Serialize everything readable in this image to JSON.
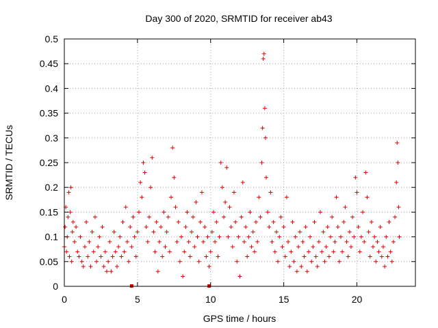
{
  "chart_data": {
    "type": "scatter",
    "title": "Day 300 of 2020, SRMTID for receiver ab43",
    "xlabel": "GPS time / hours",
    "ylabel": "SRMTID / TECUs",
    "xlim": [
      0,
      24
    ],
    "ylim": [
      0,
      0.5
    ],
    "xticks": [
      0,
      5,
      10,
      15,
      20
    ],
    "xtick_labels": [
      "0",
      "5",
      "10",
      "15",
      "20"
    ],
    "yticks": [
      0,
      0.05,
      0.1,
      0.15,
      0.2,
      0.25,
      0.3,
      0.35,
      0.4,
      0.45,
      0.5
    ],
    "ytick_labels": [
      "0",
      "0.05",
      "0.1",
      "0.15",
      "0.2",
      "0.25",
      "0.3",
      "0.35",
      "0.4",
      "0.45",
      "0.5"
    ],
    "grid": true,
    "marker_color": "#e00000",
    "axis_markers_x": [
      4.6,
      9.9
    ],
    "series": [
      {
        "name": "SRMTID",
        "points": [
          [
            0.0,
            0.08
          ],
          [
            0.05,
            0.12
          ],
          [
            0.1,
            0.16
          ],
          [
            0.15,
            0.07
          ],
          [
            0.2,
            0.1
          ],
          [
            0.25,
            0.14
          ],
          [
            0.3,
            0.19
          ],
          [
            0.35,
            0.06
          ],
          [
            0.4,
            0.15
          ],
          [
            0.45,
            0.2
          ],
          [
            0.5,
            0.05
          ],
          [
            0.55,
            0.11
          ],
          [
            0.6,
            0.13
          ],
          [
            0.7,
            0.09
          ],
          [
            0.8,
            0.12
          ],
          [
            0.9,
            0.07
          ],
          [
            1.0,
            0.06
          ],
          [
            1.1,
            0.1
          ],
          [
            1.2,
            0.05
          ],
          [
            1.3,
            0.04
          ],
          [
            1.4,
            0.08
          ],
          [
            1.5,
            0.13
          ],
          [
            1.6,
            0.06
          ],
          [
            1.7,
            0.09
          ],
          [
            1.8,
            0.04
          ],
          [
            1.9,
            0.11
          ],
          [
            2.0,
            0.07
          ],
          [
            2.1,
            0.14
          ],
          [
            2.2,
            0.05
          ],
          [
            2.3,
            0.08
          ],
          [
            2.4,
            0.1
          ],
          [
            2.5,
            0.06
          ],
          [
            2.6,
            0.12
          ],
          [
            2.7,
            0.04
          ],
          [
            2.8,
            0.07
          ],
          [
            2.9,
            0.03
          ],
          [
            3.0,
            0.05
          ],
          [
            3.1,
            0.09
          ],
          [
            3.2,
            0.03
          ],
          [
            3.3,
            0.06
          ],
          [
            3.4,
            0.11
          ],
          [
            3.5,
            0.07
          ],
          [
            3.6,
            0.04
          ],
          [
            3.7,
            0.08
          ],
          [
            3.8,
            0.1
          ],
          [
            3.9,
            0.06
          ],
          [
            4.0,
            0.13
          ],
          [
            4.1,
            0.07
          ],
          [
            4.2,
            0.16
          ],
          [
            4.3,
            0.09
          ],
          [
            4.4,
            0.05
          ],
          [
            4.5,
            0.12
          ],
          [
            4.6,
            0.08
          ],
          [
            4.7,
            0.14
          ],
          [
            4.8,
            0.1
          ],
          [
            4.9,
            0.06
          ],
          [
            5.0,
            0.11
          ],
          [
            5.1,
            0.15
          ],
          [
            5.2,
            0.21
          ],
          [
            5.3,
            0.18
          ],
          [
            5.4,
            0.25
          ],
          [
            5.5,
            0.23
          ],
          [
            5.6,
            0.12
          ],
          [
            5.7,
            0.09
          ],
          [
            5.8,
            0.14
          ],
          [
            5.9,
            0.2
          ],
          [
            6.0,
            0.26
          ],
          [
            6.1,
            0.11
          ],
          [
            6.2,
            0.07
          ],
          [
            6.3,
            0.13
          ],
          [
            6.4,
            0.03
          ],
          [
            6.5,
            0.09
          ],
          [
            6.6,
            0.12
          ],
          [
            6.7,
            0.06
          ],
          [
            6.8,
            0.15
          ],
          [
            6.9,
            0.08
          ],
          [
            7.0,
            0.11
          ],
          [
            7.1,
            0.14
          ],
          [
            7.2,
            0.07
          ],
          [
            7.3,
            0.18
          ],
          [
            7.4,
            0.28
          ],
          [
            7.5,
            0.22
          ],
          [
            7.6,
            0.16
          ],
          [
            7.7,
            0.09
          ],
          [
            7.8,
            0.13
          ],
          [
            7.9,
            0.05
          ],
          [
            8.0,
            0.1
          ],
          [
            8.1,
            0.02
          ],
          [
            8.2,
            0.07
          ],
          [
            8.3,
            0.12
          ],
          [
            8.4,
            0.15
          ],
          [
            8.5,
            0.09
          ],
          [
            8.6,
            0.06
          ],
          [
            8.7,
            0.11
          ],
          [
            8.8,
            0.14
          ],
          [
            8.9,
            0.08
          ],
          [
            9.0,
            0.17
          ],
          [
            9.1,
            0.1
          ],
          [
            9.2,
            0.05
          ],
          [
            9.3,
            0.13
          ],
          [
            9.4,
            0.19
          ],
          [
            9.5,
            0.09
          ],
          [
            9.6,
            0.12
          ],
          [
            9.7,
            0.06
          ],
          [
            9.8,
            0.1
          ],
          [
            9.9,
            0.04
          ],
          [
            10.0,
            0.07
          ],
          [
            10.1,
            0.11
          ],
          [
            10.2,
            0.15
          ],
          [
            10.3,
            0.09
          ],
          [
            10.4,
            0.13
          ],
          [
            10.5,
            0.06
          ],
          [
            10.6,
            0.1
          ],
          [
            10.7,
            0.25
          ],
          [
            10.8,
            0.2
          ],
          [
            10.9,
            0.14
          ],
          [
            11.0,
            0.17
          ],
          [
            11.1,
            0.24
          ],
          [
            11.2,
            0.1
          ],
          [
            11.3,
            0.16
          ],
          [
            11.4,
            0.12
          ],
          [
            11.5,
            0.08
          ],
          [
            11.6,
            0.19
          ],
          [
            11.7,
            0.13
          ],
          [
            11.8,
            0.05
          ],
          [
            11.9,
            0.1
          ],
          [
            12.0,
            0.02
          ],
          [
            12.1,
            0.14
          ],
          [
            12.2,
            0.21
          ],
          [
            12.3,
            0.09
          ],
          [
            12.4,
            0.12
          ],
          [
            12.5,
            0.06
          ],
          [
            12.6,
            0.1
          ],
          [
            12.7,
            0.15
          ],
          [
            12.8,
            0.08
          ],
          [
            12.9,
            0.11
          ],
          [
            13.0,
            0.07
          ],
          [
            13.1,
            0.13
          ],
          [
            13.2,
            0.09
          ],
          [
            13.3,
            0.18
          ],
          [
            13.4,
            0.14
          ],
          [
            13.5,
            0.25
          ],
          [
            13.55,
            0.32
          ],
          [
            13.6,
            0.46
          ],
          [
            13.65,
            0.47
          ],
          [
            13.7,
            0.36
          ],
          [
            13.75,
            0.3
          ],
          [
            13.8,
            0.22
          ],
          [
            13.9,
            0.15
          ],
          [
            14.0,
            0.12
          ],
          [
            14.1,
            0.19
          ],
          [
            14.2,
            0.09
          ],
          [
            14.3,
            0.13
          ],
          [
            14.4,
            0.07
          ],
          [
            14.5,
            0.11
          ],
          [
            14.6,
            0.05
          ],
          [
            14.7,
            0.1
          ],
          [
            14.8,
            0.14
          ],
          [
            14.9,
            0.08
          ],
          [
            15.0,
            0.12
          ],
          [
            15.1,
            0.06
          ],
          [
            15.2,
            0.18
          ],
          [
            15.3,
            0.09
          ],
          [
            15.4,
            0.04
          ],
          [
            15.5,
            0.07
          ],
          [
            15.6,
            0.13
          ],
          [
            15.7,
            0.05
          ],
          [
            15.8,
            0.1
          ],
          [
            15.9,
            0.03
          ],
          [
            16.0,
            0.08
          ],
          [
            16.1,
            0.11
          ],
          [
            16.2,
            0.04
          ],
          [
            16.3,
            0.09
          ],
          [
            16.4,
            0.06
          ],
          [
            16.5,
            0.12
          ],
          [
            16.6,
            0.03
          ],
          [
            16.7,
            0.07
          ],
          [
            16.8,
            0.1
          ],
          [
            16.9,
            0.05
          ],
          [
            17.0,
            0.08
          ],
          [
            17.1,
            0.13
          ],
          [
            17.2,
            0.06
          ],
          [
            17.3,
            0.04
          ],
          [
            17.4,
            0.09
          ],
          [
            17.5,
            0.15
          ],
          [
            17.6,
            0.07
          ],
          [
            17.7,
            0.11
          ],
          [
            17.8,
            0.05
          ],
          [
            17.9,
            0.08
          ],
          [
            18.0,
            0.12
          ],
          [
            18.1,
            0.06
          ],
          [
            18.2,
            0.1
          ],
          [
            18.3,
            0.14
          ],
          [
            18.4,
            0.07
          ],
          [
            18.5,
            0.09
          ],
          [
            18.6,
            0.18
          ],
          [
            18.7,
            0.12
          ],
          [
            18.8,
            0.05
          ],
          [
            18.9,
            0.1
          ],
          [
            19.0,
            0.07
          ],
          [
            19.1,
            0.13
          ],
          [
            19.2,
            0.16
          ],
          [
            19.3,
            0.09
          ],
          [
            19.4,
            0.06
          ],
          [
            19.5,
            0.11
          ],
          [
            19.6,
            0.08
          ],
          [
            19.7,
            0.14
          ],
          [
            19.8,
            0.1
          ],
          [
            19.9,
            0.22
          ],
          [
            20.0,
            0.19
          ],
          [
            20.1,
            0.12
          ],
          [
            20.2,
            0.07
          ],
          [
            20.3,
            0.1
          ],
          [
            20.4,
            0.15
          ],
          [
            20.5,
            0.09
          ],
          [
            20.6,
            0.23
          ],
          [
            20.7,
            0.18
          ],
          [
            20.8,
            0.11
          ],
          [
            20.9,
            0.06
          ],
          [
            21.0,
            0.13
          ],
          [
            21.1,
            0.08
          ],
          [
            21.2,
            0.1
          ],
          [
            21.3,
            0.05
          ],
          [
            21.4,
            0.09
          ],
          [
            21.5,
            0.07
          ],
          [
            21.6,
            0.12
          ],
          [
            21.7,
            0.06
          ],
          [
            21.8,
            0.08
          ],
          [
            21.9,
            0.04
          ],
          [
            22.0,
            0.1
          ],
          [
            22.1,
            0.06
          ],
          [
            22.2,
            0.13
          ],
          [
            22.3,
            0.07
          ],
          [
            22.4,
            0.05
          ],
          [
            22.5,
            0.09
          ],
          [
            22.6,
            0.14
          ],
          [
            22.7,
            0.21
          ],
          [
            22.75,
            0.29
          ],
          [
            22.8,
            0.25
          ],
          [
            22.85,
            0.16
          ],
          [
            22.9,
            0.1
          ]
        ]
      }
    ]
  }
}
